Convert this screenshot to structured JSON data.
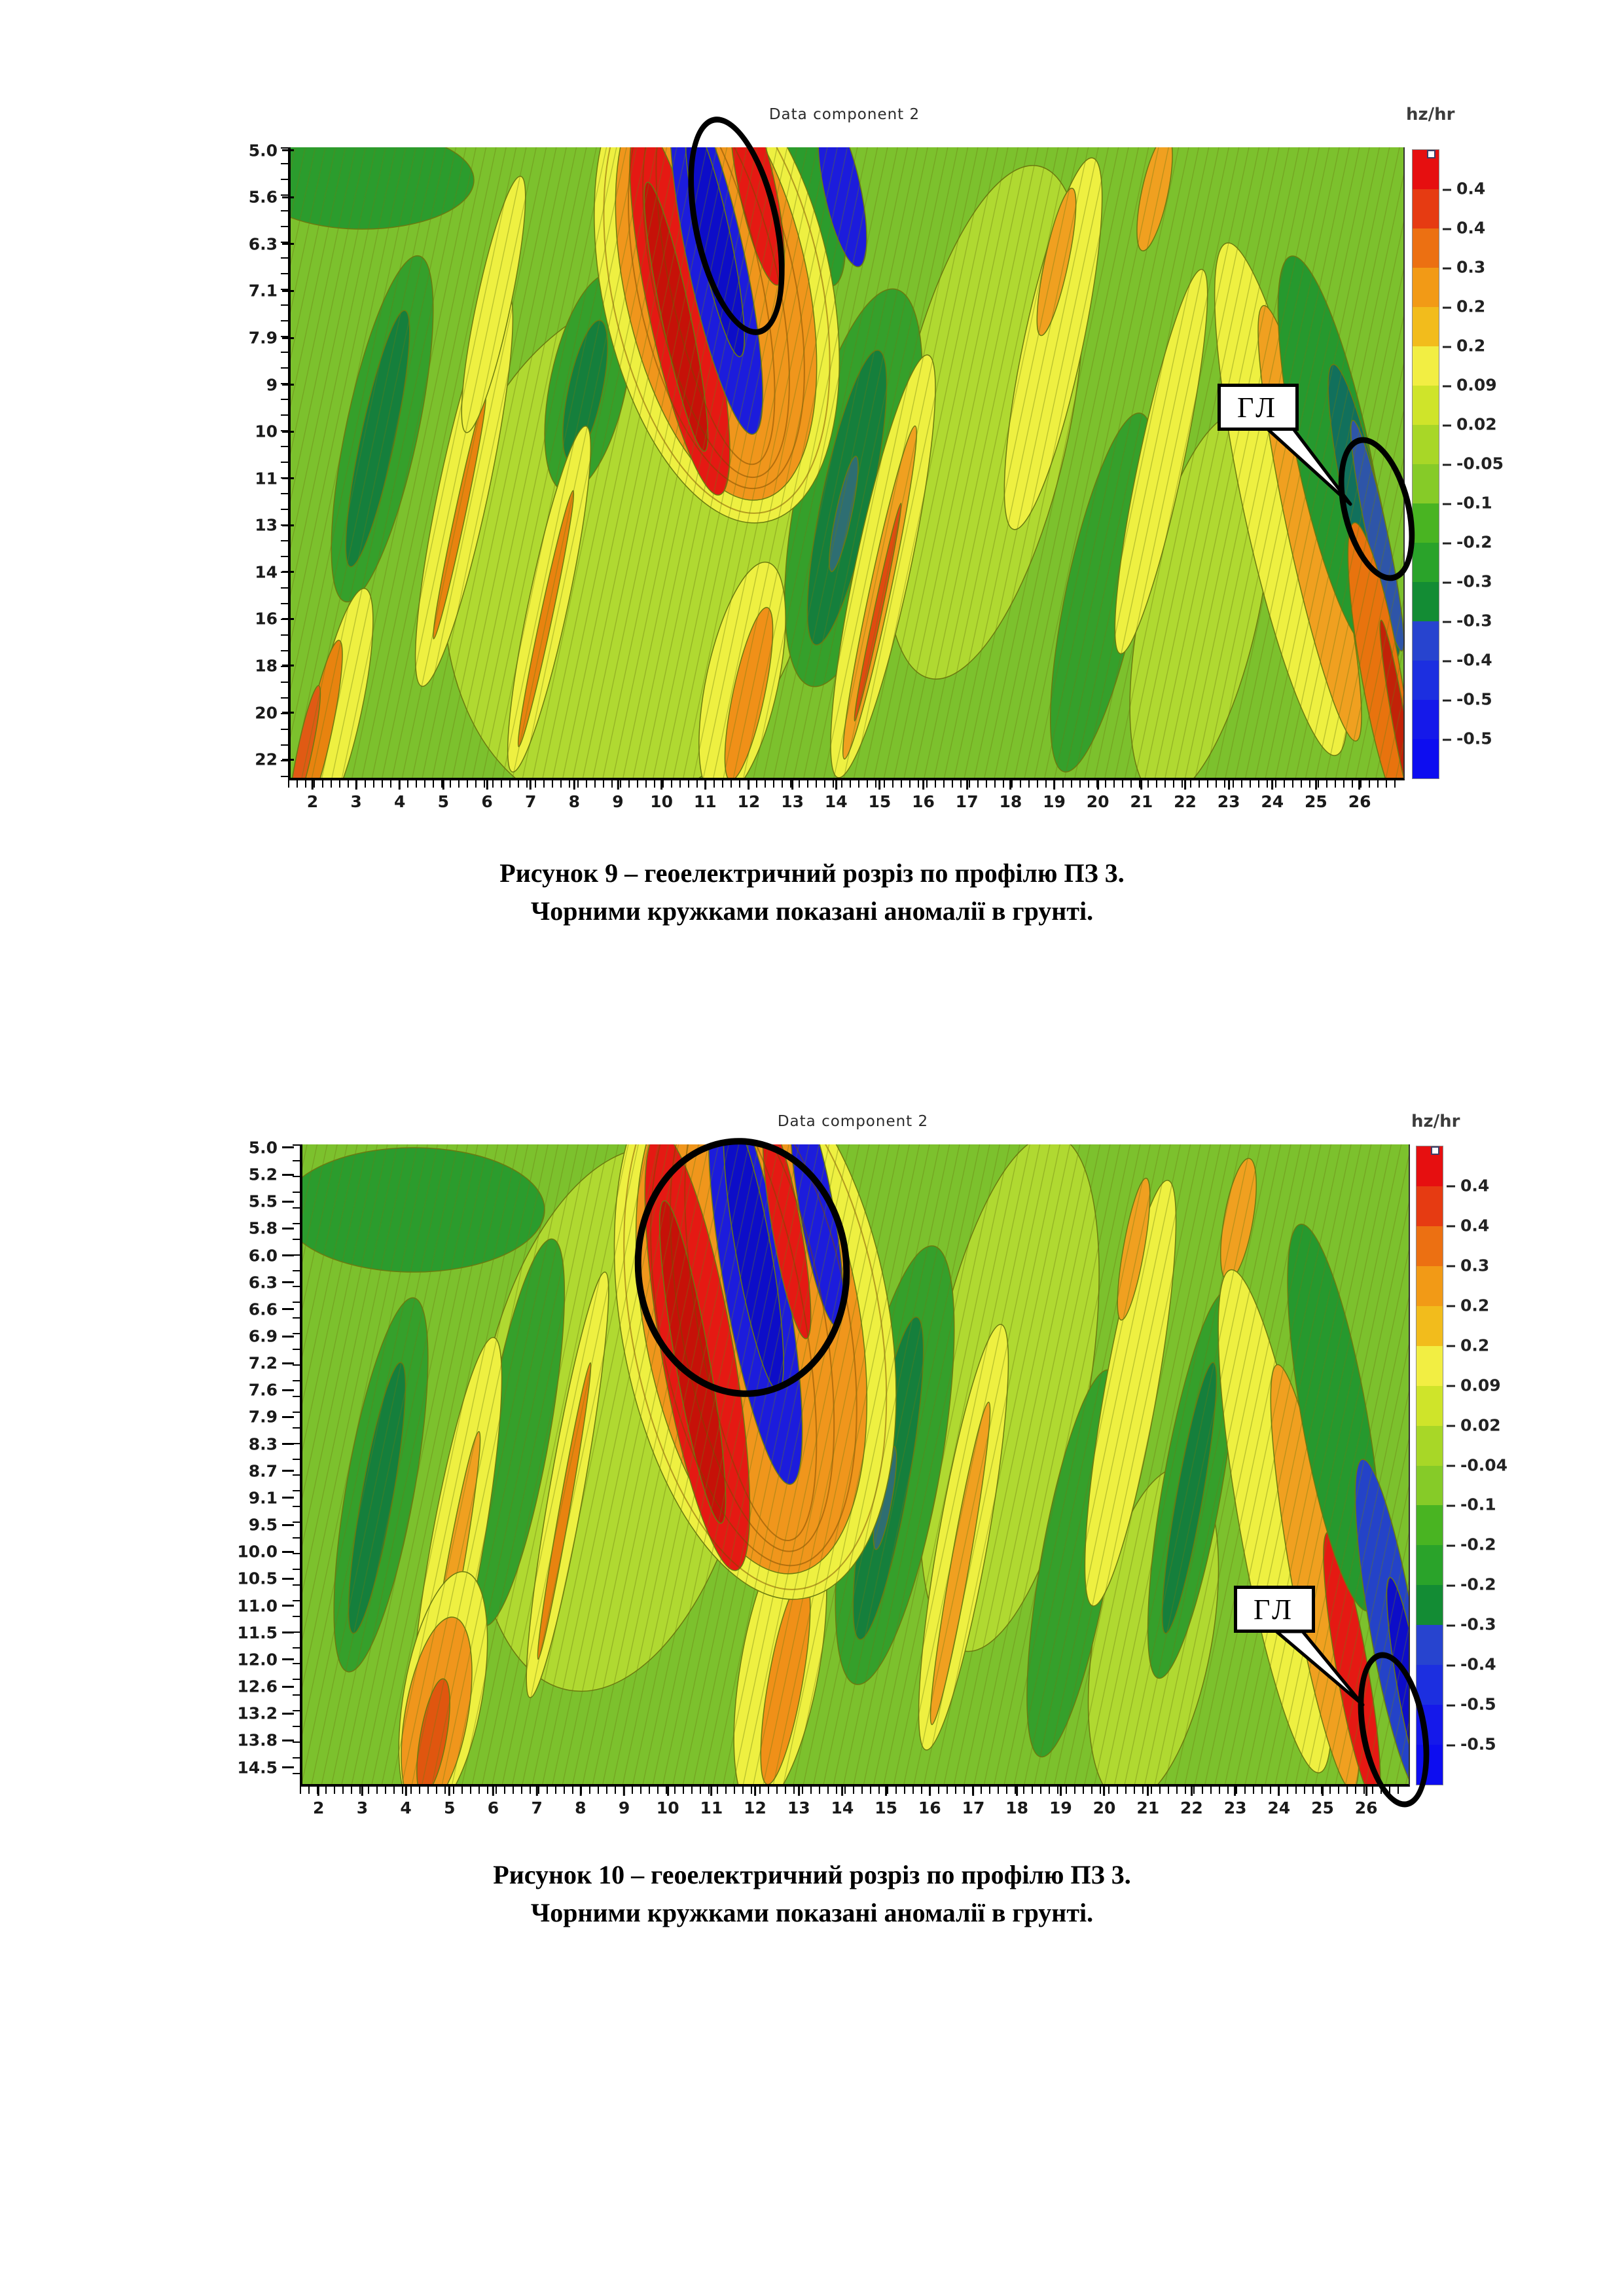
{
  "page": {
    "background": "#ffffff"
  },
  "chart_data": [
    {
      "type": "contour",
      "figure_number": "9",
      "title": "Data component 2",
      "colorbar_title": "hz/hr",
      "xlabel": "",
      "ylabel": "",
      "grid": false,
      "legend_position": "right-colorbar",
      "x_range": [
        2,
        26
      ],
      "y_range": [
        5.0,
        22
      ],
      "x_ticks": [
        "2",
        "3",
        "4",
        "5",
        "6",
        "7",
        "8",
        "9",
        "10",
        "11",
        "12",
        "13",
        "14",
        "15",
        "16",
        "17",
        "18",
        "19",
        "20",
        "21",
        "22",
        "23",
        "24",
        "25",
        "26"
      ],
      "y_ticks": [
        "5.0",
        "5.6",
        "6.3",
        "7.1",
        "7.9",
        "9",
        "10",
        "11",
        "13",
        "14",
        "16",
        "18",
        "20",
        "22"
      ],
      "colorbar_ticks": [
        "0.4",
        "0.4",
        "0.3",
        "0.2",
        "0.2",
        "0.09",
        "0.02",
        "-0.05",
        "-0.1",
        "-0.2",
        "-0.3",
        "-0.3",
        "-0.4",
        "-0.5",
        "-0.5"
      ],
      "colorbar_colors": [
        "#e60f10",
        "#e63b12",
        "#ec7012",
        "#f29a16",
        "#f2bc1c",
        "#f2ee43",
        "#cfe42a",
        "#a8d727",
        "#86cb28",
        "#49b422",
        "#2aa32a",
        "#138c34",
        "#2744cf",
        "#1c2fe0",
        "#1519ea",
        "#0d0df0"
      ],
      "annotation_label": "ГЛ",
      "anomaly_ellipse_count": 2,
      "caption1": "Рисунок 9 – геоелектричний розріз по профілю ПЗ 3.",
      "caption2": "Чорними кружками показані аномалії в грунті."
    },
    {
      "type": "contour",
      "figure_number": "10",
      "title": "Data component 2",
      "colorbar_title": "hz/hr",
      "xlabel": "",
      "ylabel": "",
      "grid": false,
      "legend_position": "right-colorbar",
      "x_range": [
        2,
        26
      ],
      "y_range": [
        5.0,
        14.5
      ],
      "x_ticks": [
        "2",
        "3",
        "4",
        "5",
        "6",
        "7",
        "8",
        "9",
        "10",
        "11",
        "12",
        "13",
        "14",
        "15",
        "16",
        "17",
        "18",
        "19",
        "20",
        "21",
        "22",
        "23",
        "24",
        "25",
        "26"
      ],
      "y_ticks": [
        "5.0",
        "5.2",
        "5.5",
        "5.8",
        "6.0",
        "6.3",
        "6.6",
        "6.9",
        "7.2",
        "7.6",
        "7.9",
        "8.3",
        "8.7",
        "9.1",
        "9.5",
        "10.0",
        "10.5",
        "11.0",
        "11.5",
        "12.0",
        "12.6",
        "13.2",
        "13.8",
        "14.5"
      ],
      "colorbar_ticks": [
        "0.4",
        "0.4",
        "0.3",
        "0.2",
        "0.2",
        "0.09",
        "0.02",
        "-0.04",
        "-0.1",
        "-0.2",
        "-0.2",
        "-0.3",
        "-0.4",
        "-0.5",
        "-0.5"
      ],
      "colorbar_colors": [
        "#e60f10",
        "#e63b12",
        "#ec7012",
        "#f29a16",
        "#f2bc1c",
        "#f2ee43",
        "#cfe42a",
        "#a8d727",
        "#86cb28",
        "#49b422",
        "#2aa32a",
        "#138c34",
        "#2744cf",
        "#1c2fe0",
        "#1519ea",
        "#0d0df0"
      ],
      "annotation_label": "ГЛ",
      "anomaly_ellipse_count": 2,
      "caption1": "Рисунок 10 – геоелектричний розріз по профілю ПЗ 3.",
      "caption2": "Чорними кружками показані аномалії в грунті."
    }
  ]
}
